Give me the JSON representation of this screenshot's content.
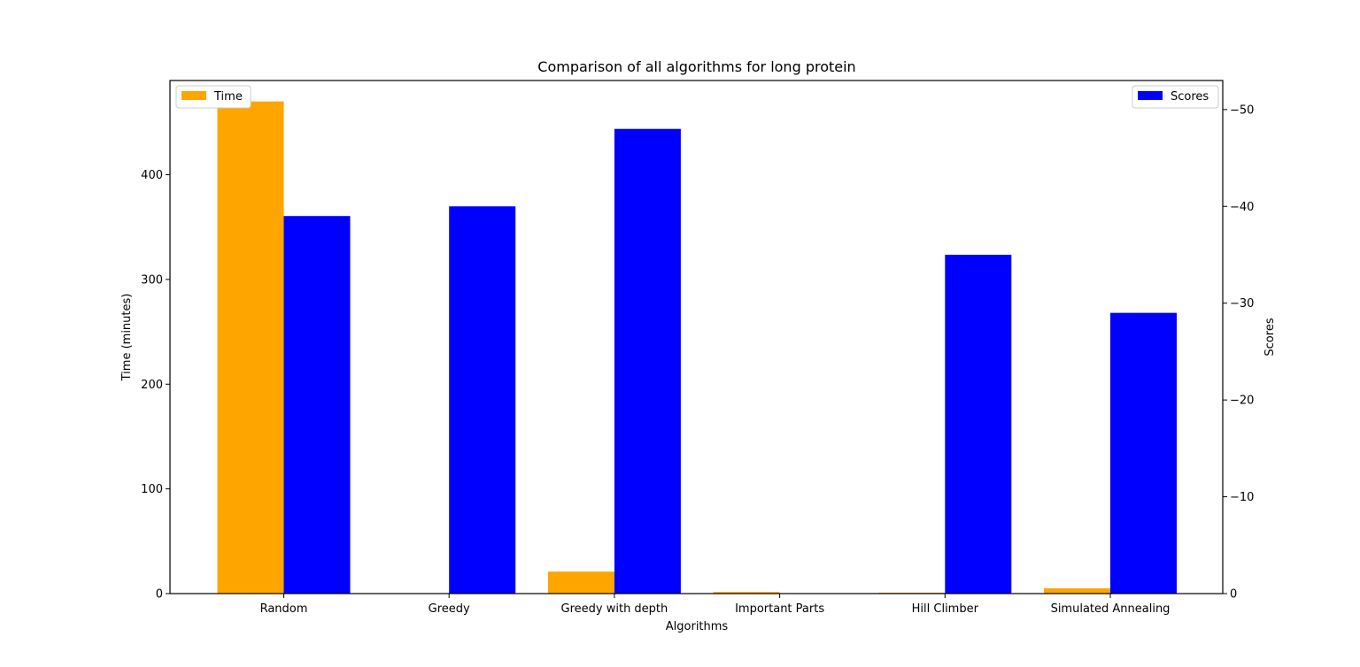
{
  "chart_data": {
    "type": "bar",
    "title": "Comparison of all algorithms for long protein",
    "xlabel": "Algorithms",
    "categories": [
      "Random",
      "Greedy",
      "Greedy with depth",
      "Important Parts",
      "Hill Climber",
      "Simulated Annealing"
    ],
    "series": [
      {
        "name": "Time",
        "axis": "left",
        "color": "#FFA500",
        "values": [
          470,
          0,
          21,
          1.5,
          0.8,
          5
        ]
      },
      {
        "name": "Scores",
        "axis": "right",
        "color": "#0000FF",
        "values": [
          -39,
          -40,
          -48,
          0,
          -35,
          -29
        ]
      }
    ],
    "y_left": {
      "label": "Time (minutes)",
      "range": [
        0,
        490
      ],
      "ticks": [
        0,
        100,
        200,
        300,
        400
      ],
      "tick_labels": [
        "0",
        "100",
        "200",
        "300",
        "400"
      ]
    },
    "y_right": {
      "label": "Scores",
      "range": [
        0,
        -53
      ],
      "inverted": true,
      "ticks": [
        0,
        -10,
        -20,
        -30,
        -40,
        -50
      ],
      "tick_labels": [
        "0",
        "−10",
        "−20",
        "−30",
        "−40",
        "−50"
      ]
    },
    "legends": [
      {
        "placement": "upper-left",
        "series": "Time"
      },
      {
        "placement": "upper-right",
        "series": "Scores"
      }
    ],
    "grid": false
  }
}
